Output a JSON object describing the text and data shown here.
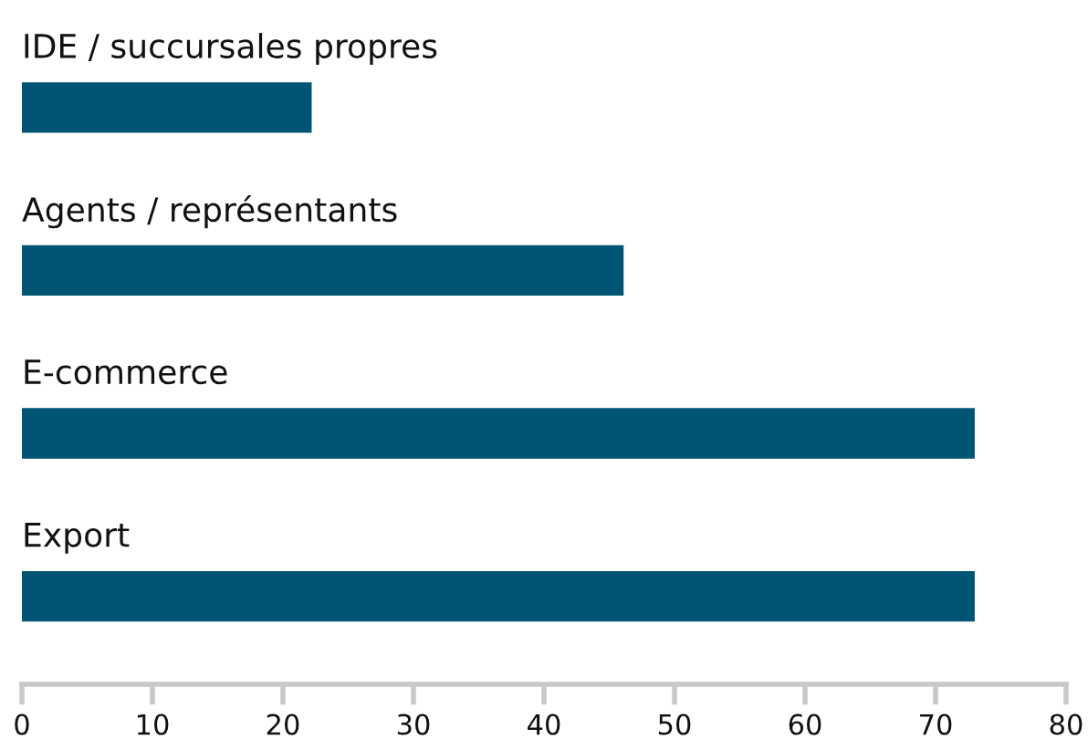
{
  "chart_data": {
    "type": "bar",
    "orientation": "horizontal",
    "categories": [
      "IDE / succursales propres",
      "Agents / représentants",
      "E-commerce",
      "Export"
    ],
    "values": [
      22.2,
      46.1,
      73.0,
      73.0
    ],
    "color": "#005574",
    "xlim": [
      0,
      80
    ],
    "xticks": [
      0,
      10,
      20,
      30,
      40,
      50,
      60,
      70,
      80
    ],
    "grid": false,
    "legend": false
  }
}
